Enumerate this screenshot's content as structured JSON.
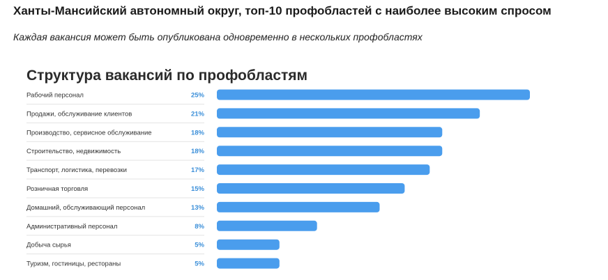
{
  "header": {
    "title": "Ханты-Мансийский автономный округ, топ-10 профобластей с наиболее высоким спросом",
    "subtitle": "Каждая вакансия может быть опубликована одновременно в нескольких профобластях"
  },
  "colors": {
    "bar": "#4a9ded",
    "percent_text": "#3b8fd9",
    "divider": "#e3e3e3"
  },
  "chart_data": {
    "type": "bar",
    "orientation": "horizontal",
    "title": "Структура вакансий по профобластям",
    "categories": [
      "Рабочий персонал",
      "Продажи, обслуживание клиентов",
      "Производство, сервисное обслуживание",
      "Строительство, недвижимость",
      "Транспорт, логистика, перевозки",
      "Розничная торговля",
      "Домашний, обслуживающий персонал",
      "Административный персонал",
      "Добыча сырья",
      "Туризм, гостиницы, рестораны"
    ],
    "values": [
      25,
      21,
      18,
      18,
      17,
      15,
      13,
      8,
      5,
      5
    ],
    "value_labels": [
      "25%",
      "21%",
      "18%",
      "18%",
      "17%",
      "15%",
      "13%",
      "8%",
      "5%",
      "5%"
    ],
    "unit": "%",
    "xlim": [
      0,
      25
    ],
    "grid": false,
    "legend": "none"
  }
}
